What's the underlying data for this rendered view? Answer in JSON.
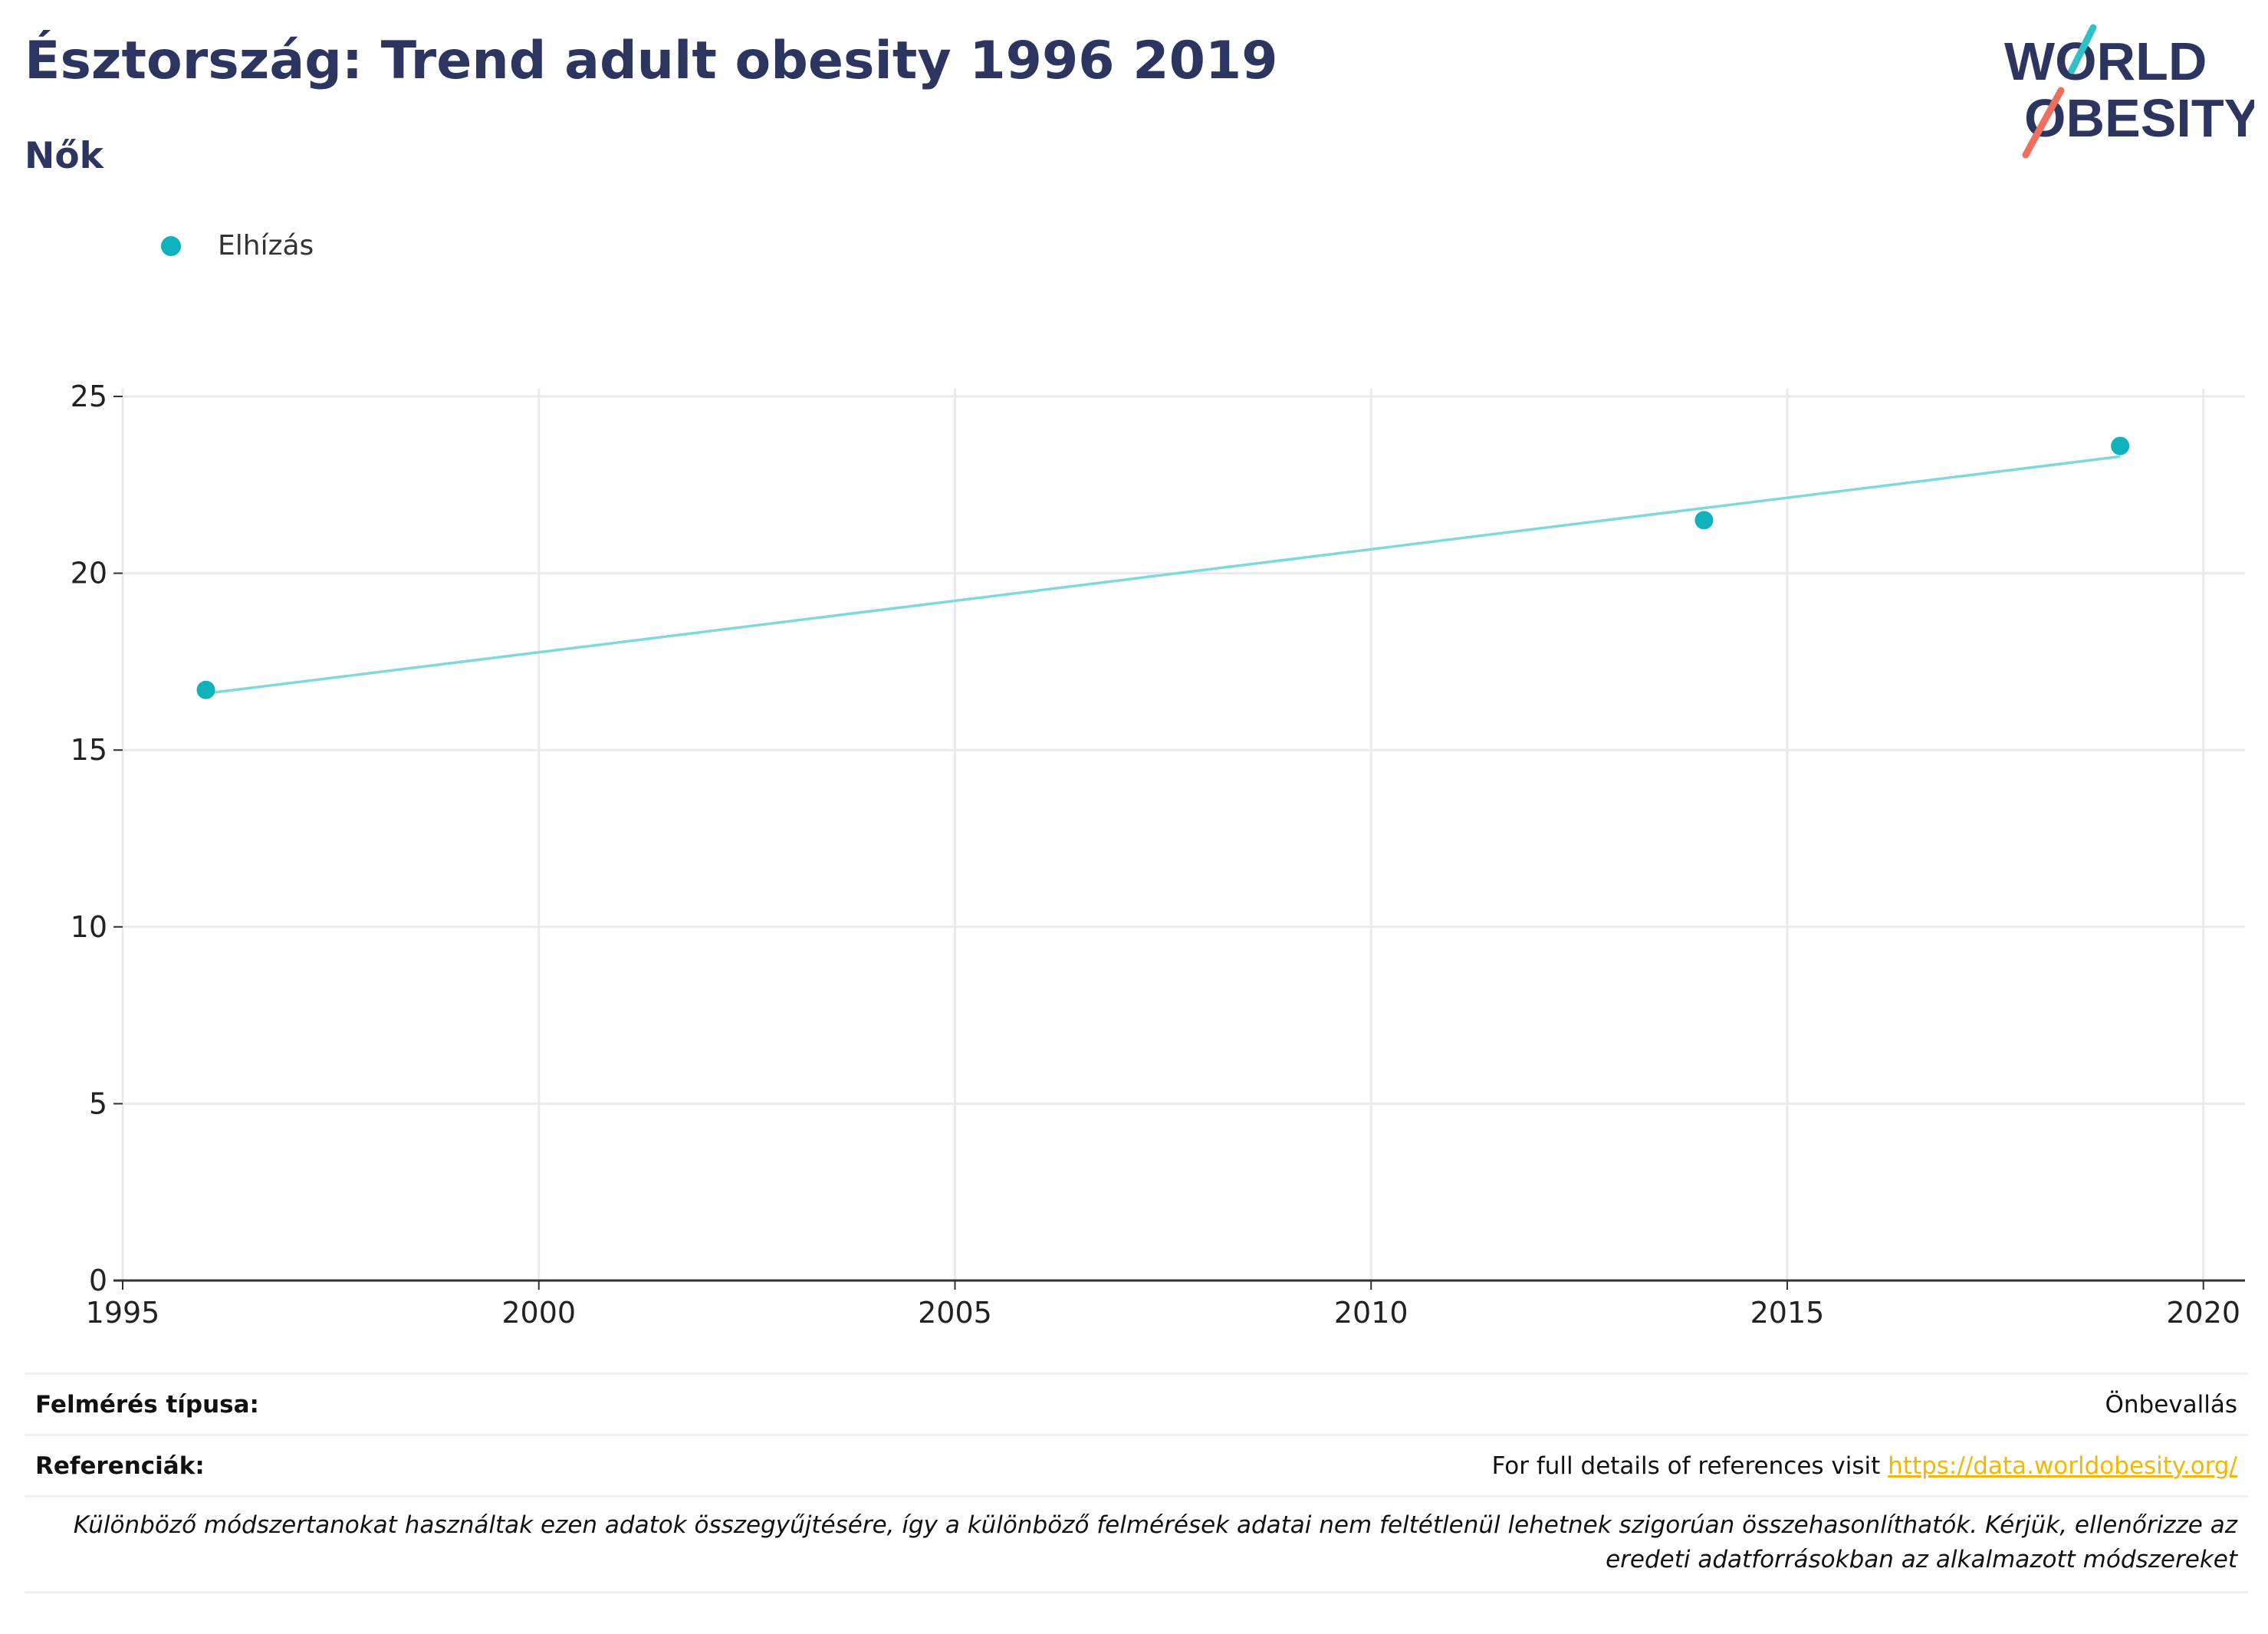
{
  "header": {
    "title": "Észtország: Trend adult obesity 1996 2019",
    "subtitle": "Nők"
  },
  "logo": {
    "line1": "WORLD",
    "line2": "OBESITY",
    "colors": {
      "text": "#2c3560",
      "slash_top": "#2fc1c3",
      "slash_bottom": "#ef6f5e"
    }
  },
  "legend": {
    "label": "Elhízás",
    "color": "#0fb1bd"
  },
  "chart_data": {
    "type": "scatter",
    "title": "",
    "xlabel": "",
    "ylabel": "",
    "xlim": [
      1995,
      2020.5
    ],
    "ylim": [
      0,
      25
    ],
    "x_ticks": [
      1995,
      2000,
      2005,
      2010,
      2015,
      2020
    ],
    "y_ticks": [
      0,
      5,
      10,
      15,
      20,
      25
    ],
    "grid": true,
    "legend_position": "top-left",
    "series": [
      {
        "name": "Elhízás",
        "color": "#0fb1bd",
        "points": [
          {
            "x": 1996,
            "y": 16.7
          },
          {
            "x": 2014,
            "y": 21.5
          },
          {
            "x": 2019,
            "y": 23.6
          }
        ]
      }
    ],
    "trendline": {
      "color": "#7fd8dc",
      "from": {
        "x": 1996,
        "y": 16.6
      },
      "to": {
        "x": 2019,
        "y": 23.3
      }
    }
  },
  "footer": {
    "survey_label": "Felmérés típusa:",
    "survey_value": "Önbevallás",
    "ref_label": "Referenciák:",
    "ref_text": "For full details of references visit ",
    "ref_link": "https://data.worldobesity.org/",
    "note_line1": "Különböző módszertanokat használtak ezen adatok összegyűjtésére, így a különböző felmérések adatai nem feltétlenül lehetnek szigorúan összehasonlíthatók. Kérjük, ellenőrizze az",
    "note_line2": "eredeti adatforrásokban az alkalmazott módszereket"
  }
}
